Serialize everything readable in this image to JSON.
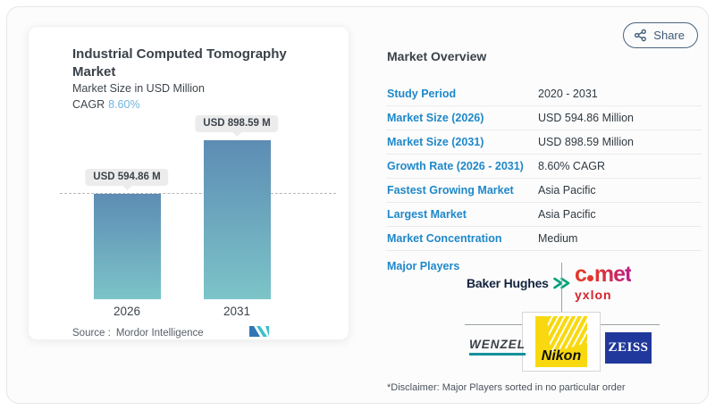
{
  "share_button": {
    "label": "Share"
  },
  "chart_card": {
    "title": "Industrial Computed Tomography Market",
    "subtitle": "Market Size in USD Million",
    "cagr_label": "CAGR",
    "cagr_value": "8.60%",
    "source_label": "Source :",
    "source_value": "Mordor Intelligence"
  },
  "chart_data": {
    "type": "bar",
    "categories": [
      "2026",
      "2031"
    ],
    "values": [
      594.86,
      898.59
    ],
    "bar_labels": [
      "USD 594.86 M",
      "USD 898.59 M"
    ],
    "title": "Industrial Computed Tomography Market",
    "ylabel": "Market Size in USD Million",
    "ylim": [
      0,
      898.59
    ],
    "reference_line": 594.86,
    "grid": false,
    "legend": false,
    "bar_gradient_top": "#5d8cb4",
    "bar_gradient_bottom": "#7cc4c8"
  },
  "overview": {
    "title": "Market Overview",
    "rows": [
      {
        "label": "Study Period",
        "value": "2020 - 2031"
      },
      {
        "label": "Market Size (2026)",
        "value": "USD 594.86 Million"
      },
      {
        "label": "Market Size (2031)",
        "value": "USD 898.59 Million"
      },
      {
        "label": "Growth Rate (2026 - 2031)",
        "value": "8.60% CAGR"
      },
      {
        "label": "Fastest Growing Market",
        "value": "Asia Pacific"
      },
      {
        "label": "Largest Market",
        "value": "Asia Pacific"
      },
      {
        "label": "Market Concentration",
        "value": "Medium"
      }
    ],
    "major_players_label": "Major Players",
    "disclaimer": "*Disclaimer: Major Players sorted in no particular order"
  },
  "major_players": {
    "baker_hughes": "Baker Hughes",
    "comet_c": "c",
    "comet_met": "met",
    "comet_sub": "yxlon",
    "wenzel": "WENZEL",
    "nikon": "Nikon",
    "zeiss": "ZEISS"
  },
  "colors": {
    "label_blue": "#1f88c9",
    "cagr_blue": "#6fb3dd",
    "share_border": "#49657f",
    "bubble_bg": "#ececec"
  }
}
